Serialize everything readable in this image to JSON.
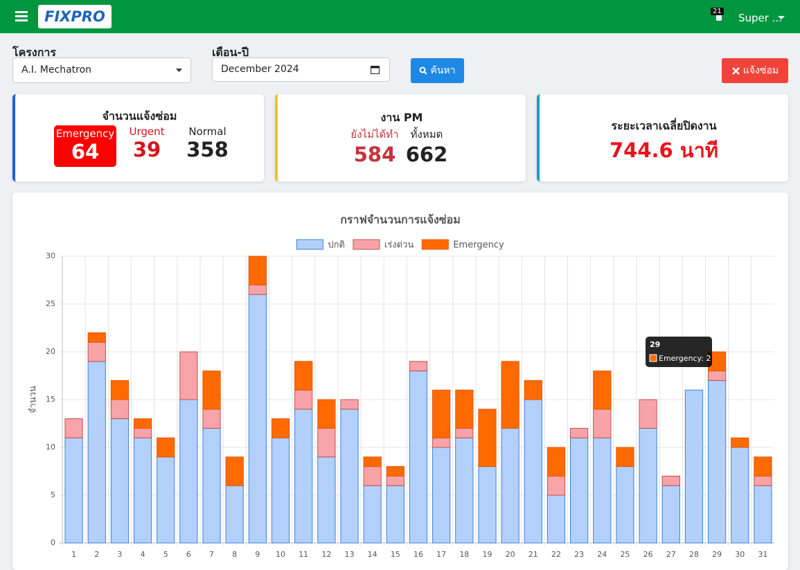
{
  "header": {
    "logo": "FIXPRO",
    "notification_count": "21",
    "user": "Super ..."
  },
  "filters": {
    "project_label": "โครงการ",
    "project_value": "A.I. Mechatron",
    "month_label": "เดือน-ปี",
    "month_value": "December 2024",
    "search_button": "ค้นหา",
    "report_button": "แจ้งซ่อม"
  },
  "cards": {
    "repair": {
      "title": "จำนวนแจ้งซ่อม",
      "items": [
        {
          "label": "Emergency",
          "value": 64
        },
        {
          "label": "Urgent",
          "value": 39
        },
        {
          "label": "Normal",
          "value": 358
        }
      ]
    },
    "pm": {
      "title": "งาน PM",
      "items": [
        {
          "label": "ยังไม่ได้ทำ",
          "value": 584
        },
        {
          "label": "ทั้งหมด",
          "value": 662
        }
      ]
    },
    "close_time": {
      "title": "ระยะเวลาเฉลี่ยปิดงาน",
      "value": "744.6 นาที"
    }
  },
  "chart_data": {
    "type": "bar",
    "stacked": true,
    "title": "กราฟจำนวนการแจ้งซ่อม",
    "y_label": "จำนวน",
    "categories": [
      "1",
      "2",
      "3",
      "4",
      "5",
      "6",
      "7",
      "8",
      "9",
      "10",
      "11",
      "12",
      "13",
      "14",
      "15",
      "16",
      "17",
      "18",
      "19",
      "20",
      "21",
      "22",
      "23",
      "24",
      "25",
      "26",
      "27",
      "28",
      "29",
      "30",
      "31"
    ],
    "series": [
      {
        "name": "ปกติ",
        "color": "#b3d0fa",
        "border": "#3d7fdc",
        "values": [
          11,
          19,
          13,
          11,
          9,
          15,
          12,
          6,
          26,
          11,
          14,
          9,
          14,
          6,
          6,
          18,
          10,
          11,
          8,
          12,
          15,
          5,
          11,
          11,
          8,
          12,
          6,
          16,
          17,
          10,
          6
        ]
      },
      {
        "name": "เร่งด่วน",
        "color": "#f7a3a8",
        "border": "#c0504d",
        "values": [
          2,
          2,
          2,
          1,
          0,
          5,
          2,
          0,
          1,
          0,
          2,
          3,
          1,
          2,
          1,
          1,
          1,
          1,
          0,
          0,
          0,
          2,
          1,
          3,
          0,
          3,
          1,
          0,
          1,
          0,
          1
        ]
      },
      {
        "name": "Emergency",
        "color": "#ff6a00",
        "border": "#e05500",
        "values": [
          0,
          1,
          2,
          1,
          2,
          0,
          4,
          3,
          3,
          2,
          3,
          3,
          0,
          1,
          1,
          0,
          5,
          4,
          6,
          7,
          2,
          3,
          0,
          4,
          2,
          0,
          0,
          0,
          2,
          1,
          2
        ]
      }
    ],
    "ylim": [
      0,
      30
    ],
    "yticks": [
      0,
      5,
      10,
      15,
      20,
      25,
      30
    ],
    "grid": true,
    "legend": "top",
    "tooltip": {
      "title": "29",
      "text": "Emergency: 2"
    }
  }
}
